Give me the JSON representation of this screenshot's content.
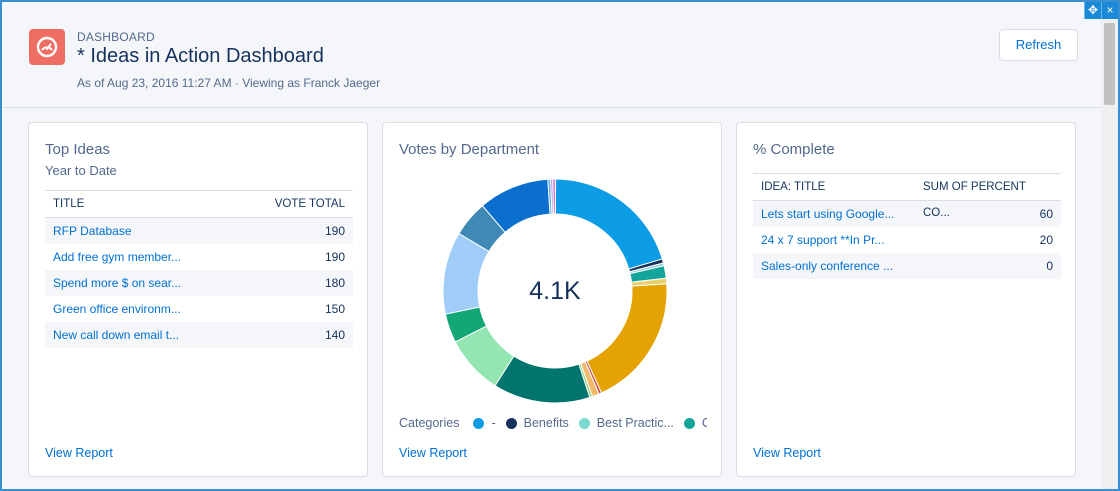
{
  "window": {
    "move_icon": "move-icon",
    "close_glyph": "×"
  },
  "header": {
    "eyebrow": "DASHBOARD",
    "title": "* Ideas in Action Dashboard",
    "subtitle": "As of Aug 23, 2016 11:27 AM · Viewing as Franck Jaeger",
    "refresh_label": "Refresh",
    "icon": "dashboard-gauge-icon",
    "icon_color": "#ef6e64"
  },
  "cards": {
    "top_ideas": {
      "title": "Top Ideas",
      "subtitle": "Year to Date",
      "columns": [
        "TITLE",
        "VOTE TOTAL"
      ],
      "rows": [
        {
          "title": "RFP Database",
          "value": "190"
        },
        {
          "title": "Add free gym member...",
          "value": "190"
        },
        {
          "title": "Spend more $ on sear...",
          "value": "180"
        },
        {
          "title": "Green office environm...",
          "value": "150"
        },
        {
          "title": "New call down email t...",
          "value": "140"
        }
      ],
      "view_report": "View Report"
    },
    "votes_by_department": {
      "title": "Votes by Department",
      "center_value": "4.1K",
      "legend_title": "Categories",
      "legend": [
        {
          "label": "-",
          "color": "#0b9ce5"
        },
        {
          "label": "Benefits",
          "color": "#16325c"
        },
        {
          "label": "Best Practic...",
          "color": "#7bdad0"
        },
        {
          "label": "C",
          "color": "#13a59b"
        }
      ],
      "view_report": "View Report"
    },
    "percent_complete": {
      "title": "% Complete",
      "columns": [
        "IDEA: TITLE",
        "SUM OF PERCENT CO..."
      ],
      "rows": [
        {
          "title": "Lets start using Google...",
          "value": "60"
        },
        {
          "title": "24 x 7 support **In Pr...",
          "value": "20"
        },
        {
          "title": "Sales-only conference ...",
          "value": "0"
        }
      ],
      "view_report": "View Report"
    }
  },
  "chart_data": {
    "type": "pie",
    "variant": "donut",
    "center_label": "4.1K",
    "legend_title": "Categories",
    "slices": [
      {
        "label": "-",
        "share": 0.203,
        "color": "#0b9ce5"
      },
      {
        "label": "Benefits",
        "share": 0.006,
        "color": "#16325c"
      },
      {
        "label": "",
        "share": 0.004,
        "color": "#8ed1d8"
      },
      {
        "label": "",
        "share": 0.018,
        "color": "#13a59b"
      },
      {
        "label": "",
        "share": 0.008,
        "color": "#e9d06a"
      },
      {
        "label": "",
        "share": 0.192,
        "color": "#e4a203"
      },
      {
        "label": "",
        "share": 0.004,
        "color": "#d6473f"
      },
      {
        "label": "",
        "share": 0.01,
        "color": "#f2b96b"
      },
      {
        "label": "",
        "share": 0.004,
        "color": "#9cd783"
      },
      {
        "label": "",
        "share": 0.14,
        "color": "#00756d"
      },
      {
        "label": "",
        "share": 0.085,
        "color": "#93e6b1"
      },
      {
        "label": "",
        "share": 0.042,
        "color": "#13a777"
      },
      {
        "label": "",
        "share": 0.119,
        "color": "#9fcdf7"
      },
      {
        "label": "",
        "share": 0.052,
        "color": "#3f8ab5"
      },
      {
        "label": "",
        "share": 0.102,
        "color": "#0a6fcd"
      },
      {
        "label": "",
        "share": 0.004,
        "color": "#5ab1ee"
      },
      {
        "label": "",
        "share": 0.003,
        "color": "#b47ed3"
      },
      {
        "label": "",
        "share": 0.004,
        "color": "#d17ae3"
      }
    ]
  }
}
